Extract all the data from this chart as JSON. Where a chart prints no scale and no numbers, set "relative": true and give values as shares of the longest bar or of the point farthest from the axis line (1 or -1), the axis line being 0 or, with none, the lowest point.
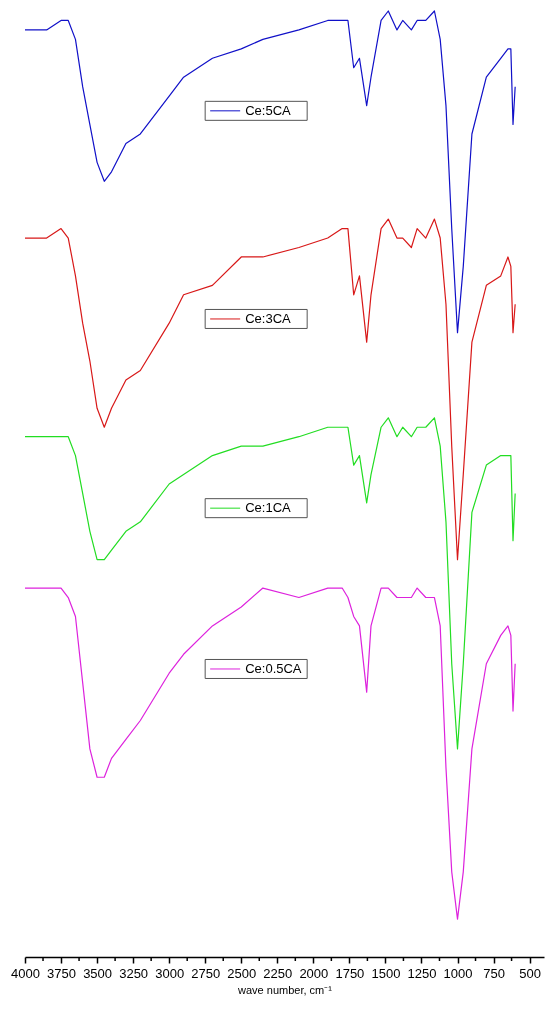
{
  "chart_data": {
    "type": "line",
    "relative": true,
    "xlabel": "wave number, cm⁻¹",
    "xlim": [
      4000,
      400
    ],
    "xticks": [
      4000,
      {
        "value": 3875,
        "label": null
      },
      3750,
      {
        "value": 3625,
        "label": null
      },
      3500,
      {
        "value": 3375,
        "label": null
      },
      3250,
      {
        "value": 3125,
        "label": null
      },
      3000,
      {
        "value": 2875,
        "label": null
      },
      2750,
      {
        "value": 2625,
        "label": null
      },
      2500,
      {
        "value": 2375,
        "label": null
      },
      2250,
      {
        "value": 2125,
        "label": null
      },
      2000,
      {
        "value": 1875,
        "label": null
      },
      1750,
      {
        "value": 1625,
        "label": null
      },
      1500,
      {
        "value": 1375,
        "label": null
      },
      1250,
      {
        "value": 1125,
        "label": null
      },
      1000,
      {
        "value": 875,
        "label": null
      },
      750,
      {
        "value": 625,
        "label": null
      },
      500
    ],
    "x": [
      4000,
      3850,
      3750,
      3700,
      3650,
      3600,
      3550,
      3500,
      3450,
      3400,
      3300,
      3200,
      3000,
      2900,
      2700,
      2500,
      2350,
      2100,
      1900,
      1800,
      1760,
      1720,
      1680,
      1630,
      1600,
      1530,
      1480,
      1420,
      1380,
      1320,
      1280,
      1220,
      1160,
      1120,
      1080,
      1040,
      1000,
      960,
      900,
      800,
      700,
      650,
      630,
      615,
      600
    ],
    "line_style": "solid",
    "legend": "center",
    "series": [
      {
        "name": "Ce:5CA",
        "color": "#1010c8",
        "values": [
          0.98,
          0.98,
          0.99,
          0.99,
          0.97,
          0.92,
          0.88,
          0.84,
          0.82,
          0.83,
          0.86,
          0.87,
          0.91,
          0.93,
          0.95,
          0.96,
          0.97,
          0.98,
          0.99,
          0.99,
          0.99,
          0.94,
          0.95,
          0.9,
          0.93,
          0.99,
          1,
          0.98,
          0.99,
          0.98,
          0.99,
          0.99,
          1,
          0.97,
          0.9,
          0.77,
          0.66,
          0.73,
          0.87,
          0.93,
          0.95,
          0.96,
          0.96,
          0.88,
          0.92
        ]
      },
      {
        "name": "Ce:3CA",
        "color": "#d81818",
        "values": [
          0.76,
          0.76,
          0.77,
          0.76,
          0.72,
          0.67,
          0.63,
          0.58,
          0.56,
          0.58,
          0.61,
          0.62,
          0.67,
          0.7,
          0.71,
          0.74,
          0.74,
          0.75,
          0.76,
          0.77,
          0.77,
          0.7,
          0.72,
          0.65,
          0.7,
          0.77,
          0.78,
          0.76,
          0.76,
          0.75,
          0.77,
          0.76,
          0.78,
          0.76,
          0.69,
          0.54,
          0.42,
          0.51,
          0.65,
          0.71,
          0.72,
          0.74,
          0.73,
          0.66,
          0.69
        ]
      },
      {
        "name": "Ce:1CA",
        "color": "#22dd22",
        "values": [
          0.55,
          0.55,
          0.55,
          0.55,
          0.53,
          0.49,
          0.45,
          0.42,
          0.42,
          0.43,
          0.45,
          0.46,
          0.5,
          0.51,
          0.53,
          0.54,
          0.54,
          0.55,
          0.56,
          0.56,
          0.56,
          0.52,
          0.53,
          0.48,
          0.51,
          0.56,
          0.57,
          0.55,
          0.56,
          0.55,
          0.56,
          0.56,
          0.57,
          0.54,
          0.46,
          0.31,
          0.22,
          0.31,
          0.47,
          0.52,
          0.53,
          0.53,
          0.53,
          0.44,
          0.49
        ]
      },
      {
        "name": "Ce:0.5CA",
        "color": "#dd22dd",
        "values": [
          0.39,
          0.39,
          0.39,
          0.38,
          0.36,
          0.29,
          0.22,
          0.19,
          0.19,
          0.21,
          0.23,
          0.25,
          0.3,
          0.32,
          0.35,
          0.37,
          0.39,
          0.38,
          0.39,
          0.39,
          0.38,
          0.36,
          0.35,
          0.28,
          0.35,
          0.39,
          0.39,
          0.38,
          0.38,
          0.38,
          0.39,
          0.38,
          0.38,
          0.35,
          0.2,
          0.09,
          0.04,
          0.09,
          0.22,
          0.31,
          0.34,
          0.35,
          0.34,
          0.26,
          0.31
        ]
      }
    ]
  }
}
